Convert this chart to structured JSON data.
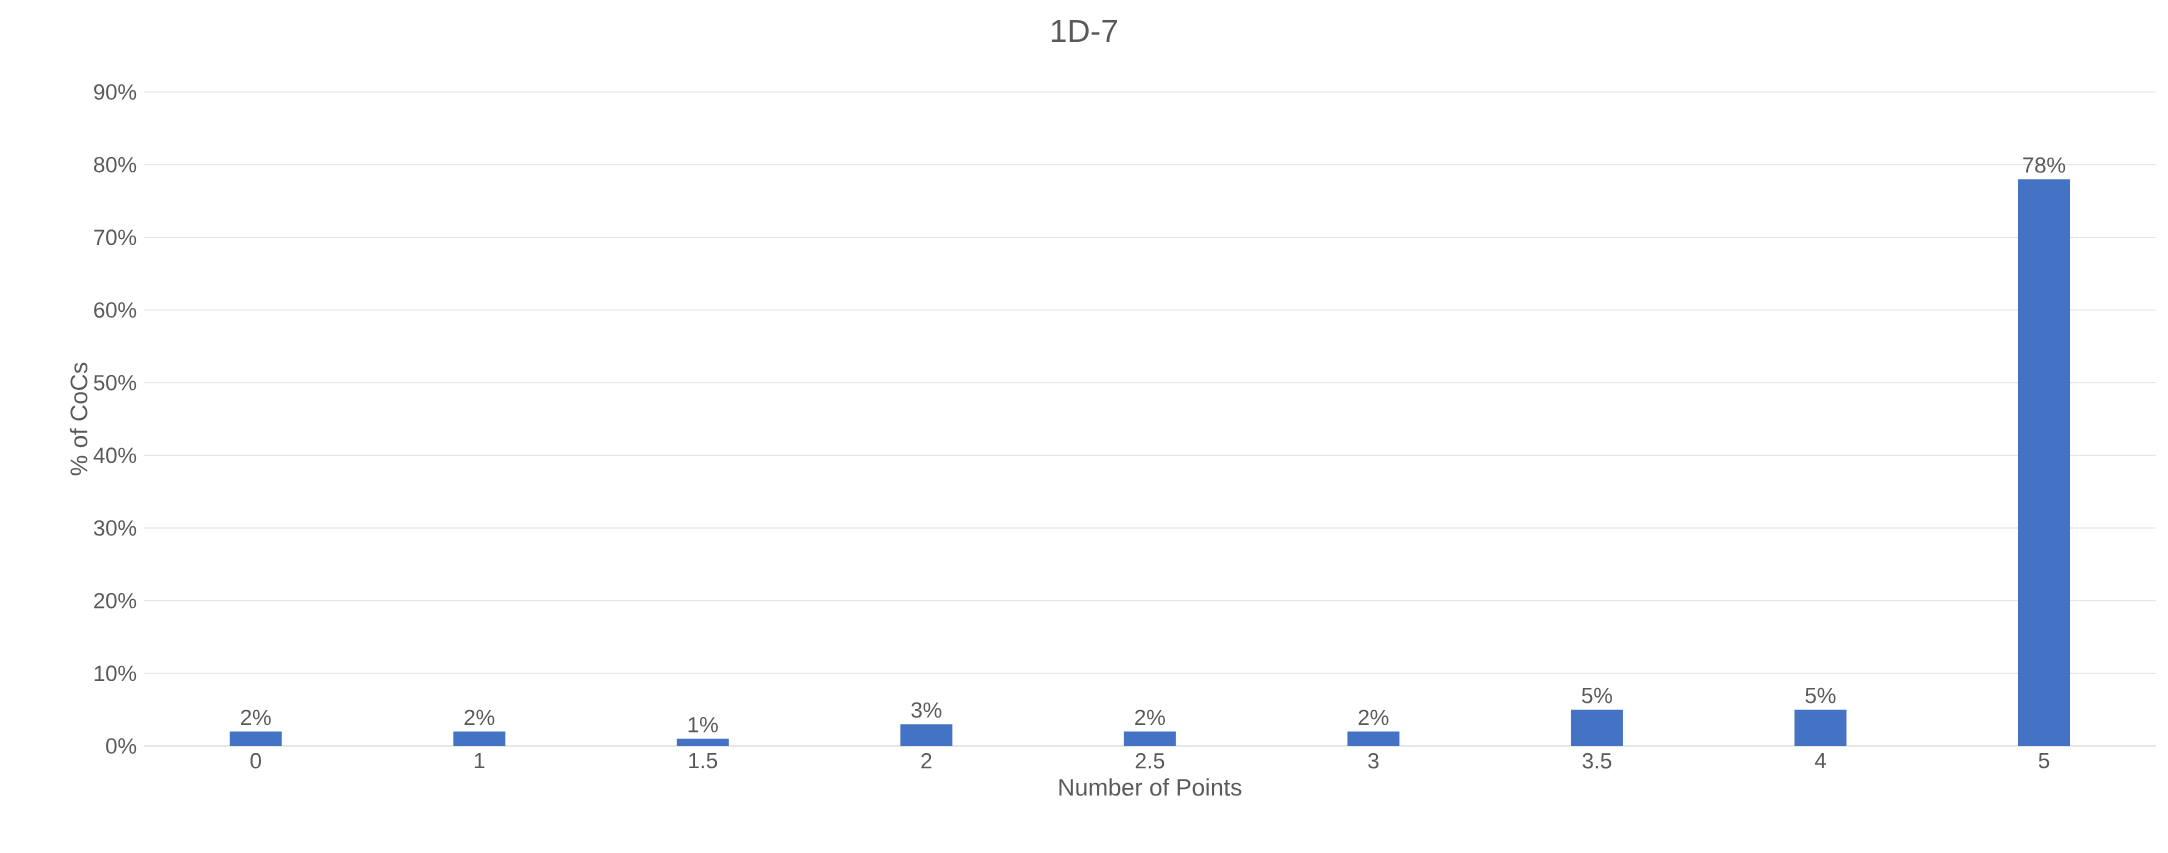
{
  "chart_data": {
    "type": "bar",
    "title": "1D-7",
    "xlabel": "Number of Points",
    "ylabel": "% of CoCs",
    "categories": [
      "0",
      "1",
      "1.5",
      "2",
      "2.5",
      "3",
      "3.5",
      "4",
      "5"
    ],
    "values": [
      2,
      2,
      1,
      3,
      2,
      2,
      5,
      5,
      78
    ],
    "value_labels": [
      "2%",
      "2%",
      "1%",
      "3%",
      "2%",
      "2%",
      "5%",
      "5%",
      "78%"
    ],
    "color": "#4472c4",
    "ylim": [
      0,
      90
    ],
    "yticks": [
      {
        "value": 0,
        "label": "0%"
      },
      {
        "value": 10,
        "label": "10%"
      },
      {
        "value": 20,
        "label": "20%"
      },
      {
        "value": 30,
        "label": "30%"
      },
      {
        "value": 40,
        "label": "40%"
      },
      {
        "value": 50,
        "label": "50%"
      },
      {
        "value": 60,
        "label": "60%"
      },
      {
        "value": 70,
        "label": "70%"
      },
      {
        "value": 80,
        "label": "80%"
      },
      {
        "value": 90,
        "label": "90%"
      }
    ],
    "grid": "y"
  }
}
